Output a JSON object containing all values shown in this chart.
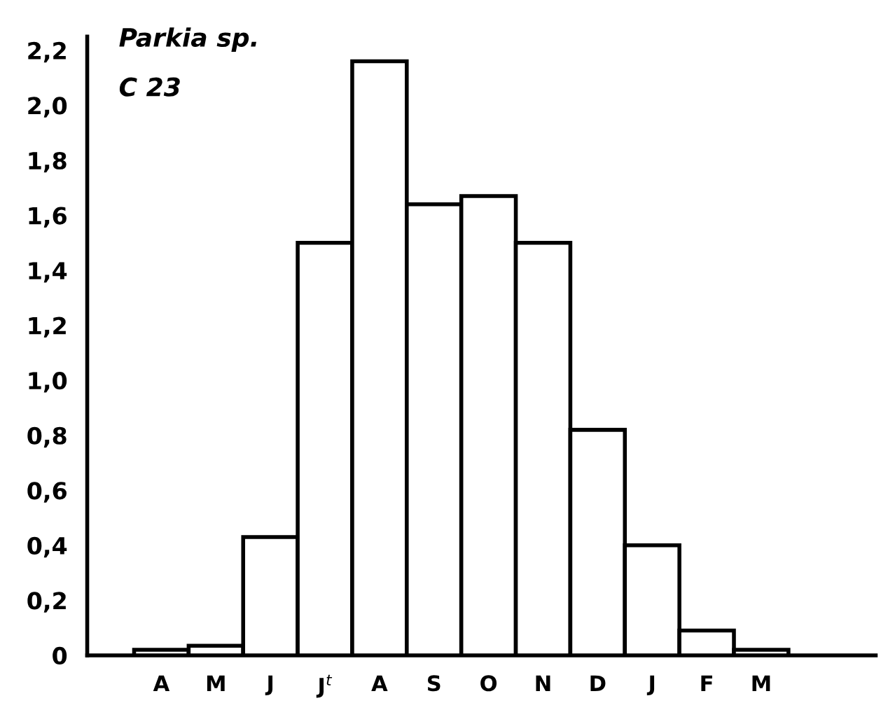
{
  "chart_data": {
    "type": "bar",
    "title": "Parkia sp.",
    "subtitle": "C 23",
    "categories": [
      "A",
      "M",
      "J",
      "J$^{t}$",
      "A",
      "S",
      "O",
      "N",
      "D",
      "J",
      "F",
      "M"
    ],
    "values": [
      0.02,
      0.035,
      0.43,
      1.5,
      2.16,
      1.64,
      1.67,
      1.5,
      0.82,
      0.4,
      0.09,
      0.02
    ],
    "color": "#ffffff",
    "ylim": [
      0,
      2.25
    ],
    "yticks": [
      0,
      {
        "value": 0.2,
        "label": "0,2"
      },
      {
        "value": 0.4,
        "label": "0,4"
      },
      {
        "value": 0.6,
        "label": "0,6"
      },
      {
        "value": 0.8,
        "label": "0,8"
      },
      {
        "value": 1.0,
        "label": "1,0"
      },
      {
        "value": 1.2,
        "label": "1,2"
      },
      {
        "value": 1.4,
        "label": "1,4"
      },
      {
        "value": 1.6,
        "label": "1,6"
      },
      {
        "value": 1.8,
        "label": "1,8"
      },
      {
        "value": 2.0,
        "label": "2,0"
      },
      {
        "value": 2.2,
        "label": "2,2"
      }
    ],
    "grid": false,
    "legend": false
  }
}
